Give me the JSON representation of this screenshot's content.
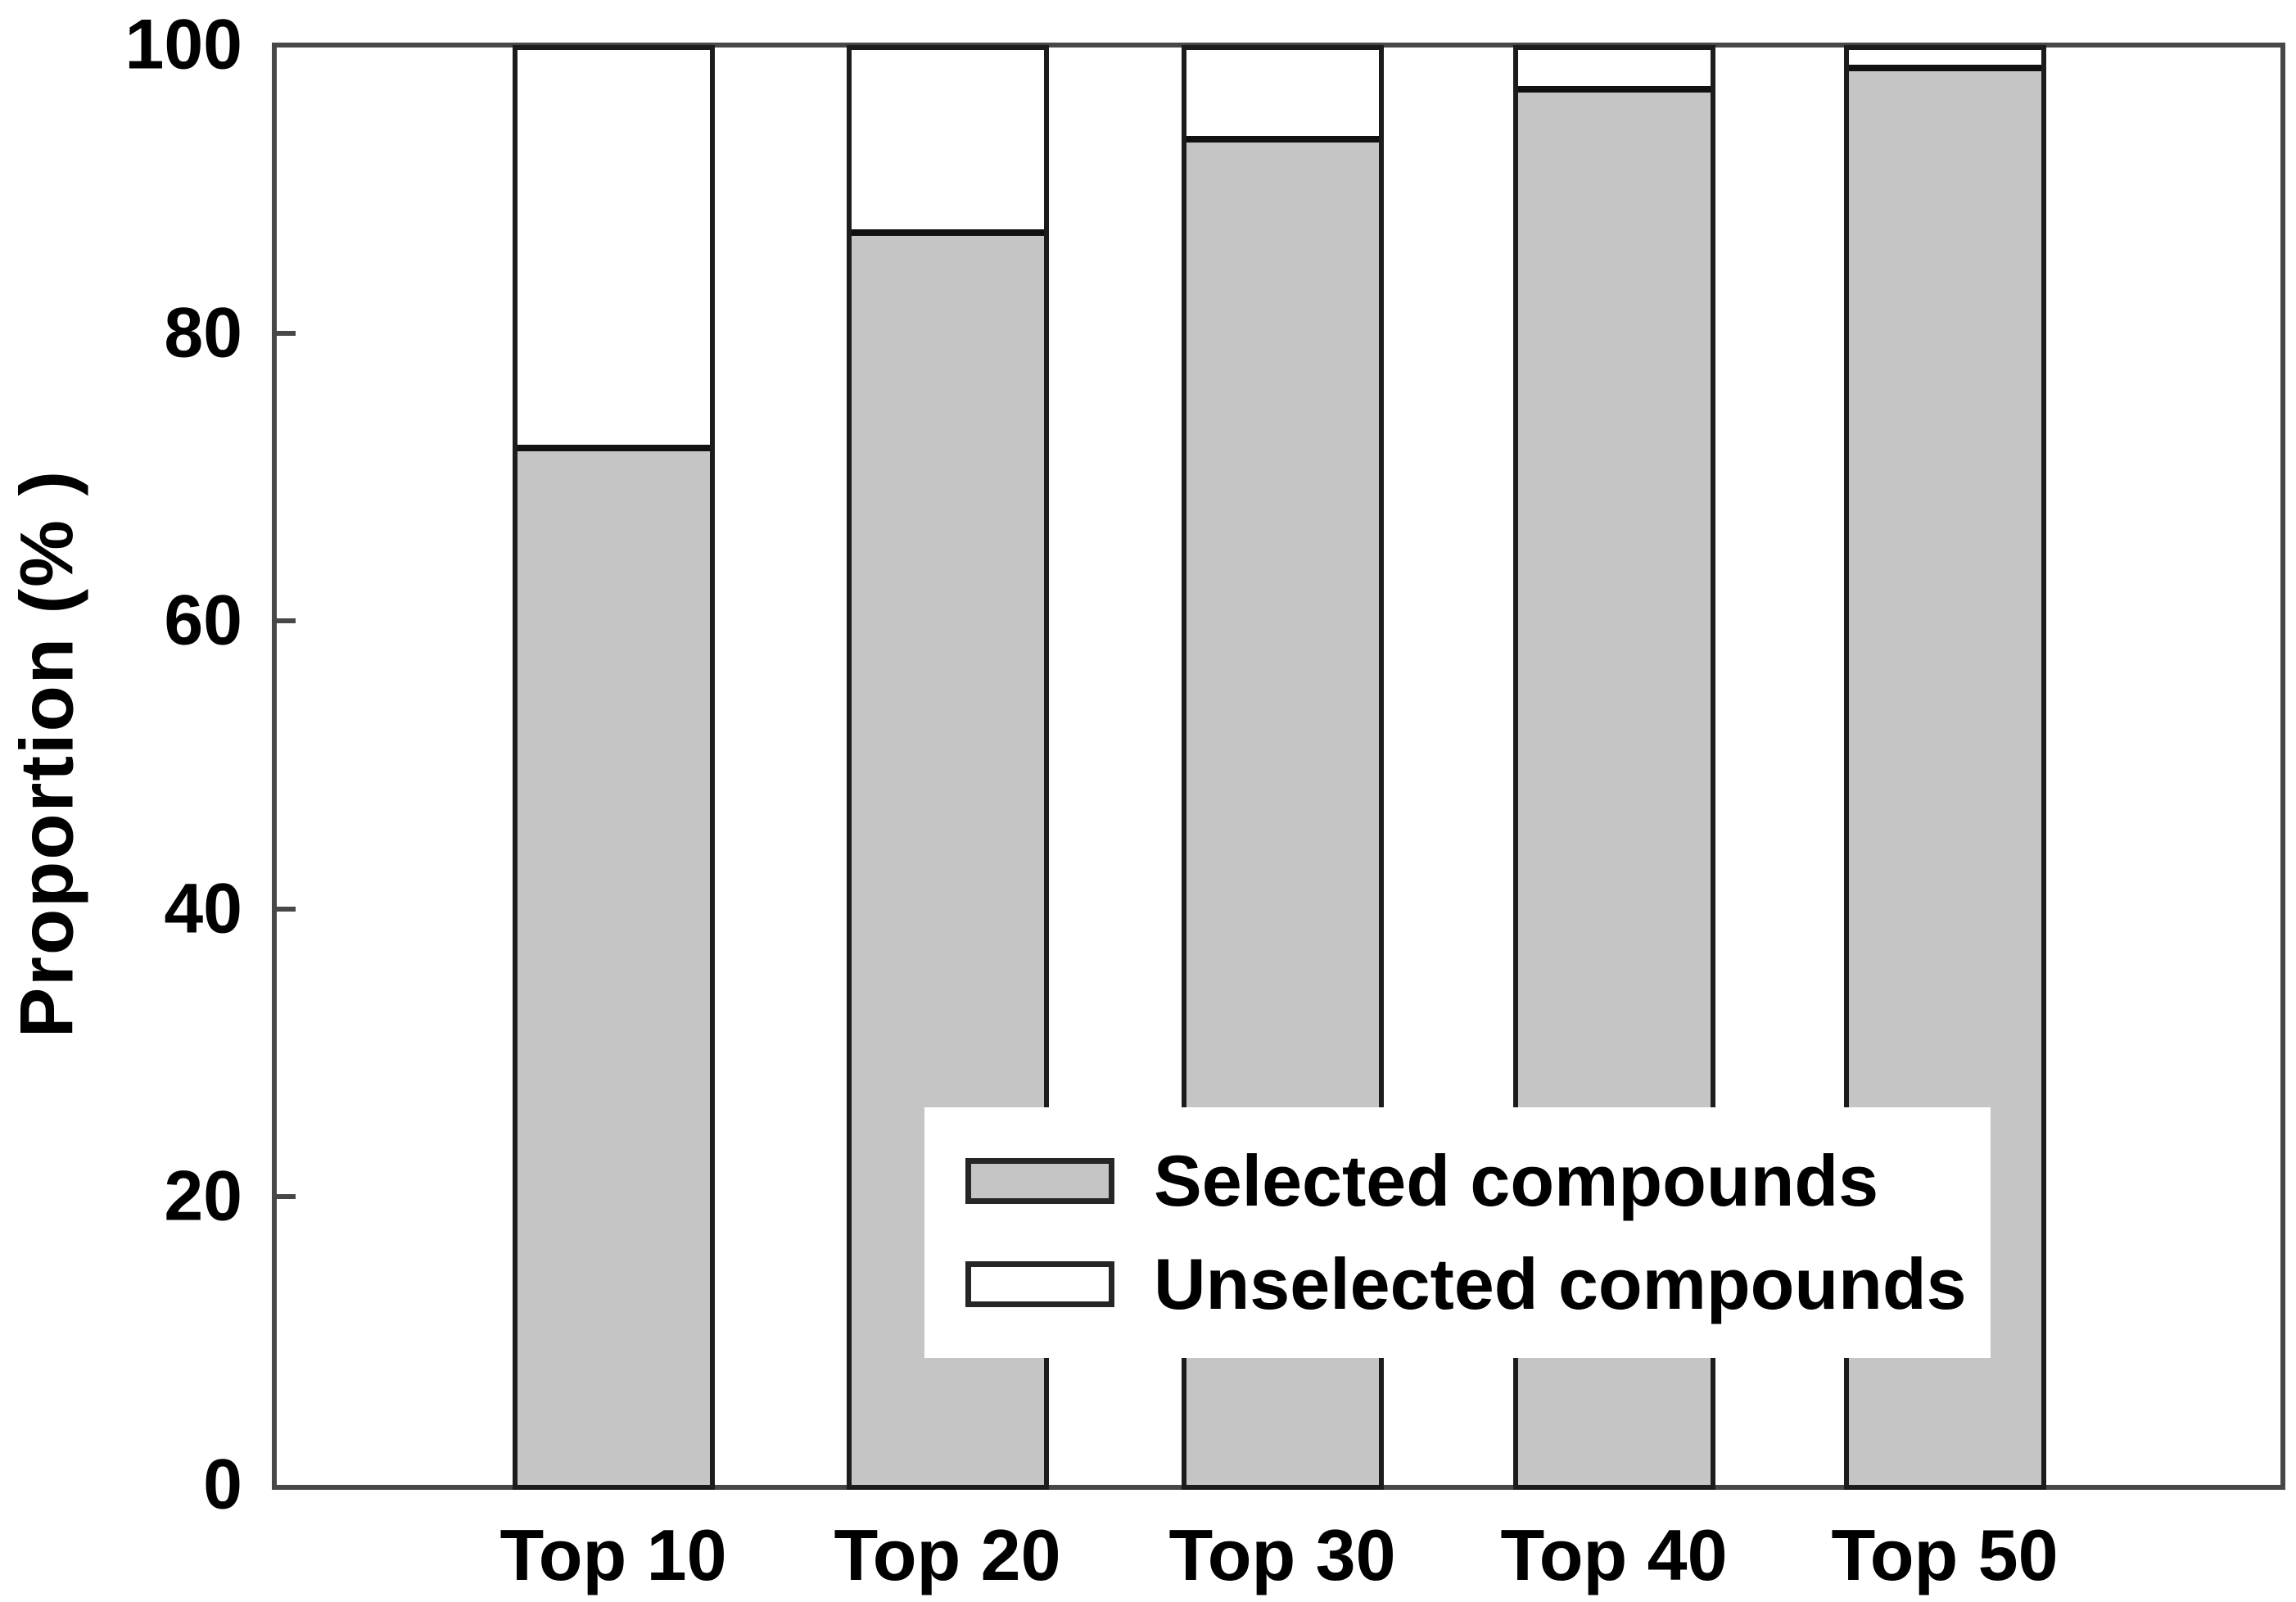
{
  "figure": {
    "background": "#ffffff"
  },
  "y_axis": {
    "title": "Proportion (% )",
    "tick_labels": [
      "0",
      "20",
      "40",
      "60",
      "80",
      "100"
    ]
  },
  "x_axis": {
    "categories": [
      "Top 10",
      "Top 20",
      "Top 30",
      "Top 40",
      "Top 50"
    ]
  },
  "legend": {
    "items": [
      {
        "label": "Selected compounds",
        "swatch_color": "#c5c5c5"
      },
      {
        "label": "Unselected compounds",
        "swatch_color": "#ffffff"
      }
    ]
  },
  "colors": {
    "frame": "#474747",
    "bar_border": "#1c1c1c",
    "segment_divider": "#111111",
    "selected_fill": "#c5c5c5",
    "unselected_fill": "#ffffff",
    "text": "#000000"
  },
  "chart_data": {
    "type": "bar",
    "stacked": true,
    "title": "",
    "xlabel": "",
    "ylabel": "Proportion (% )",
    "categories": [
      "Top 10",
      "Top 20",
      "Top 30",
      "Top 40",
      "Top 50"
    ],
    "series": [
      {
        "name": "Selected compounds",
        "color": "#c5c5c5",
        "values": [
          72.5,
          87.5,
          94,
          97.5,
          99
        ]
      },
      {
        "name": "Unselected compounds",
        "color": "#ffffff",
        "values": [
          27.5,
          12.5,
          6,
          2.5,
          1
        ]
      }
    ],
    "ylim": [
      0,
      100
    ],
    "yticks": [
      0,
      20,
      40,
      60,
      80,
      100
    ],
    "grid": false,
    "legend_position": "inside-lower-center"
  }
}
